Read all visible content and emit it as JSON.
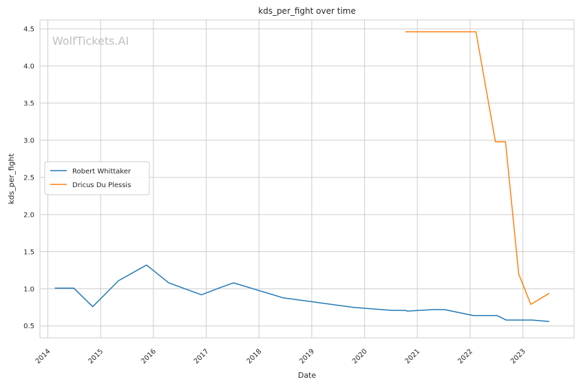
{
  "chart_data": {
    "type": "line",
    "title": "kds_per_fight over time",
    "xlabel": "Date",
    "ylabel": "kds_per_fight",
    "watermark": "WolfTickets.AI",
    "grid": true,
    "legend_position": "center-left",
    "xlim": [
      2013.85,
      2023.97
    ],
    "ylim": [
      0.34,
      4.62
    ],
    "x_ticks": [
      "2014",
      "2015",
      "2016",
      "2017",
      "2018",
      "2019",
      "2020",
      "2021",
      "2022",
      "2023"
    ],
    "y_ticks": [
      "0.5",
      "1.0",
      "1.5",
      "2.0",
      "2.5",
      "3.0",
      "3.5",
      "4.0",
      "4.5"
    ],
    "series": [
      {
        "name": "Robert Whittaker",
        "color": "#1f77b4",
        "points": [
          {
            "x": 2014.13,
            "y": 1.01
          },
          {
            "x": 2014.49,
            "y": 1.01
          },
          {
            "x": 2014.85,
            "y": 0.76
          },
          {
            "x": 2015.34,
            "y": 1.11
          },
          {
            "x": 2015.87,
            "y": 1.32
          },
          {
            "x": 2016.29,
            "y": 1.08
          },
          {
            "x": 2016.91,
            "y": 0.92
          },
          {
            "x": 2017.28,
            "y": 1.02
          },
          {
            "x": 2017.52,
            "y": 1.08
          },
          {
            "x": 2018.45,
            "y": 0.88
          },
          {
            "x": 2019.79,
            "y": 0.75
          },
          {
            "x": 2020.52,
            "y": 0.71
          },
          {
            "x": 2020.77,
            "y": 0.71
          },
          {
            "x": 2020.81,
            "y": 0.7
          },
          {
            "x": 2021.29,
            "y": 0.72
          },
          {
            "x": 2021.52,
            "y": 0.72
          },
          {
            "x": 2022.06,
            "y": 0.64
          },
          {
            "x": 2022.51,
            "y": 0.64
          },
          {
            "x": 2022.68,
            "y": 0.58
          },
          {
            "x": 2023.17,
            "y": 0.58
          },
          {
            "x": 2023.5,
            "y": 0.56
          }
        ]
      },
      {
        "name": "Dricus Du Plessis",
        "color": "#ff7f0e",
        "points": [
          {
            "x": 2020.77,
            "y": 4.46
          },
          {
            "x": 2022.11,
            "y": 4.46
          },
          {
            "x": 2022.48,
            "y": 2.98
          },
          {
            "x": 2022.67,
            "y": 2.98
          },
          {
            "x": 2022.92,
            "y": 1.2
          },
          {
            "x": 2023.15,
            "y": 0.79
          },
          {
            "x": 2023.5,
            "y": 0.94
          }
        ]
      }
    ]
  }
}
